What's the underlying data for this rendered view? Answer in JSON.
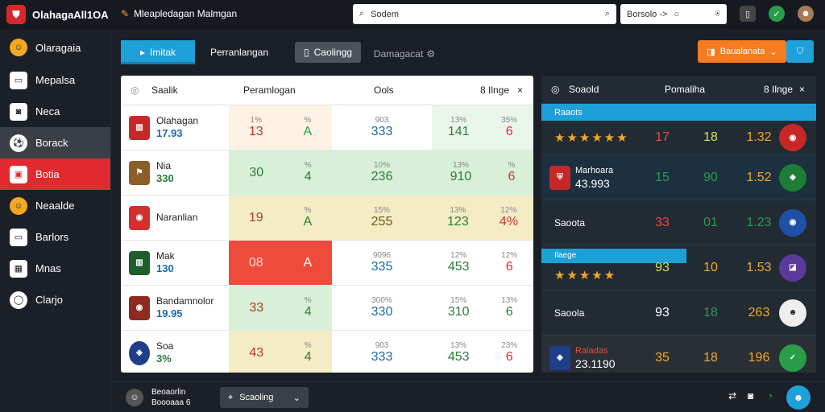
{
  "app": {
    "title": "OlahagaAll1OA",
    "subtitle": "Mleapledagan Malmgan"
  },
  "search": {
    "placeholder": "Sodem",
    "scope": "Borsolo ->"
  },
  "colors": {
    "accent": "#1ea0d8",
    "danger": "#e02a2f",
    "orange": "#f57c20"
  },
  "sidebar": {
    "items": [
      {
        "label": "Olaragaia",
        "icon": "team-icon"
      },
      {
        "label": "Mepalsa",
        "icon": "monitor-icon"
      },
      {
        "label": "Neca",
        "icon": "camera-icon"
      },
      {
        "label": "Borack",
        "icon": "ball-icon"
      },
      {
        "label": "Botia",
        "icon": "chat-icon"
      },
      {
        "label": "Neaalde",
        "icon": "team-icon"
      },
      {
        "label": "Barlors",
        "icon": "monitor-icon"
      },
      {
        "label": "Mnas",
        "icon": "grid-icon"
      },
      {
        "label": "Clarjo",
        "icon": "ring-icon"
      }
    ]
  },
  "tabs": [
    {
      "label": "Imitak"
    },
    {
      "label": "Perranlangan"
    },
    {
      "label": "Caolingg"
    },
    {
      "label": "Damagacat"
    }
  ],
  "right_buttons": {
    "orange": "Baualanata"
  },
  "left_table": {
    "headers": [
      "Saalik",
      "Peramlogan",
      "Ools",
      "8 Ilnge"
    ],
    "rows": [
      {
        "name": "Olahagan",
        "score": "17.93",
        "a1": "13",
        "a2": "A",
        "b1": "333",
        "c1": "141",
        "c2": "6"
      },
      {
        "name": "Nia",
        "score": "330",
        "a1": "30",
        "a2": "4",
        "b1": "236",
        "c1": "910",
        "c2": "6"
      },
      {
        "name": "Naranlian",
        "score": "",
        "a1": "19",
        "a2": "A",
        "b1": "255",
        "c1": "123",
        "c2": "4%"
      },
      {
        "name": "Mak",
        "score": "130",
        "a1": "08",
        "a2": "A",
        "b1": "335",
        "c1": "453",
        "c2": "6"
      },
      {
        "name": "Bandamnolor",
        "score": "19.95",
        "a1": "33",
        "a2": "4",
        "b1": "330",
        "c1": "310",
        "c2": "6"
      },
      {
        "name": "Soa",
        "score": "3%",
        "a1": "43",
        "a2": "4",
        "b1": "333",
        "c1": "453",
        "c2": "6"
      }
    ]
  },
  "right_table": {
    "headers": [
      "Soaold",
      "Pomaliha",
      "8 Ilnge"
    ],
    "rows": [
      {
        "label": "Raaots",
        "stars": "★★★★★★",
        "n1": "17",
        "n2": "18",
        "n3": "1.32"
      },
      {
        "label": "Marhoara",
        "score": "43.993",
        "n1": "15",
        "n2": "90",
        "n3": "1.52"
      },
      {
        "label": "Saoota",
        "n1": "33",
        "n2": "01",
        "n3": "1.23"
      },
      {
        "label": "Ilaege",
        "stars": "★★★★★",
        "n1": "93",
        "n2": "10",
        "n3": "1.53"
      },
      {
        "label": "Saoola",
        "n1": "93",
        "n2": "18",
        "n3": "263"
      },
      {
        "label": "Raladas",
        "score": "23.1190",
        "n1": "35",
        "n2": "18",
        "n3": "196"
      }
    ]
  },
  "bottom": {
    "label": "Beoaorlin",
    "sub": "Boooaaa 6",
    "select": "Scaoling"
  }
}
